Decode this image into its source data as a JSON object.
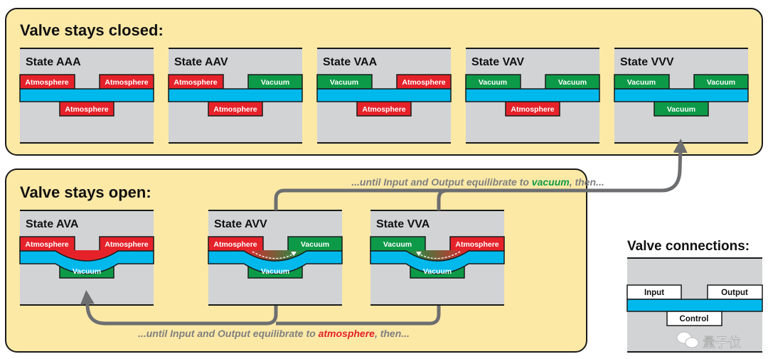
{
  "colors": {
    "box_fill": "#fce9a6",
    "panel_fill": "#d1d3d4",
    "membrane": "#00b9ec",
    "atmosphere": "#e5222a",
    "vacuum": "#0d9a48",
    "arrow": "#6d6e70",
    "note_text": "#808080"
  },
  "closed": {
    "title": "Valve stays closed:",
    "states": [
      {
        "name": "State AAA",
        "input": "Atmosphere",
        "output": "Atmosphere",
        "control": "Atmosphere"
      },
      {
        "name": "State AAV",
        "input": "Atmosphere",
        "output": "Vacuum",
        "control": "Atmosphere"
      },
      {
        "name": "State VAA",
        "input": "Vacuum",
        "output": "Atmosphere",
        "control": "Atmosphere"
      },
      {
        "name": "State VAV",
        "input": "Vacuum",
        "output": "Vacuum",
        "control": "Atmosphere"
      },
      {
        "name": "State VVV",
        "input": "Vacuum",
        "output": "Vacuum",
        "control": "Vacuum"
      }
    ]
  },
  "open": {
    "title": "Valve stays open:",
    "states": [
      {
        "name": "State AVA",
        "input": "Atmosphere",
        "output": "Atmosphere",
        "control": "Vacuum",
        "flow": "none"
      },
      {
        "name": "State AVV",
        "input": "Atmosphere",
        "output": "Vacuum",
        "control": "Vacuum",
        "flow": "right"
      },
      {
        "name": "State VVA",
        "input": "Vacuum",
        "output": "Atmosphere",
        "control": "Vacuum",
        "flow": "left"
      }
    ]
  },
  "notes": {
    "top": {
      "before": "...until Input and Output equilibrate to ",
      "highlight": "vacuum",
      "after": ", then..."
    },
    "bottom": {
      "before": "...until Input and Output equilibrate to ",
      "highlight": "atmosphere",
      "after": ", then..."
    }
  },
  "legend": {
    "title": "Valve connections:",
    "input": "Input",
    "output": "Output",
    "control": "Control"
  },
  "watermark": "量子位"
}
